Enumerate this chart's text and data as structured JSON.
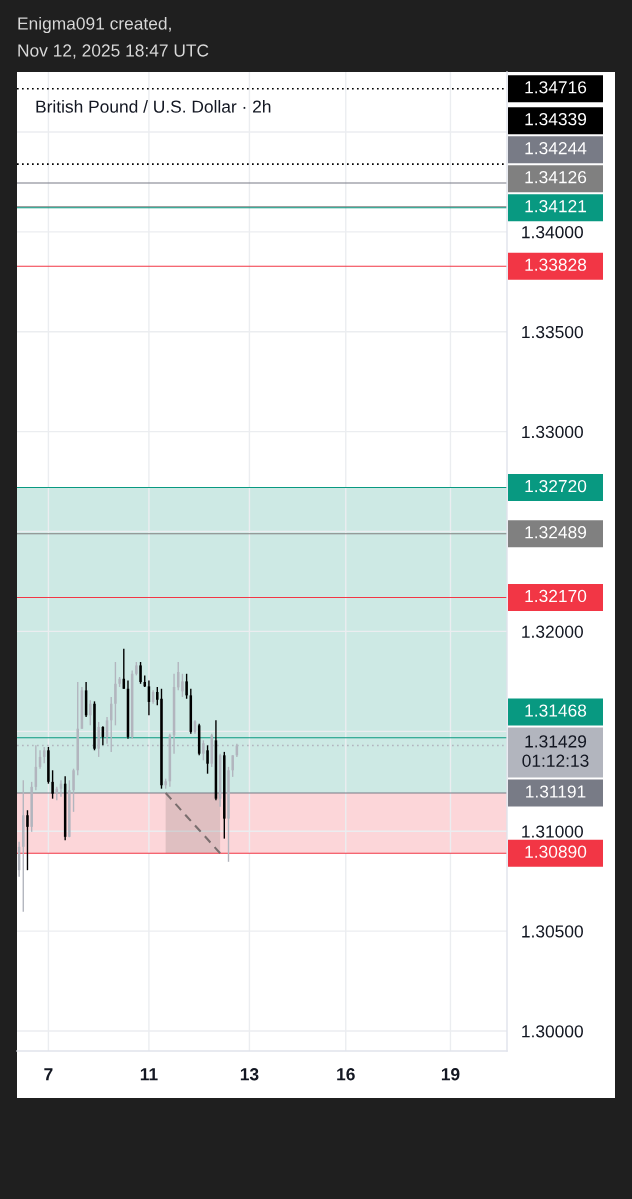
{
  "chart_data": {
    "type": "candlestick",
    "title": "British Pound / U.S. Dollar · 2h",
    "annotations": [
      "Enigma091 created,",
      "Nov 12, 2025 18:47 UTC"
    ],
    "categories": [
      null,
      null,
      null,
      null,
      null,
      null,
      null,
      "7",
      null,
      null,
      null,
      null,
      null,
      null,
      null,
      null,
      null,
      null,
      null,
      null,
      null,
      null,
      null,
      null,
      null,
      null,
      null,
      null,
      null,
      null,
      null,
      "11",
      null,
      null,
      null,
      null,
      null,
      null,
      null,
      null,
      null,
      null,
      null,
      null,
      null,
      null,
      null,
      null,
      null,
      null,
      null,
      null,
      null,
      null,
      null,
      "13",
      null,
      null,
      null,
      null,
      null,
      null,
      null,
      null,
      null,
      null,
      null,
      null,
      null,
      null,
      null,
      null,
      null,
      null,
      null,
      null,
      null,
      null,
      "16",
      null,
      null,
      null,
      null,
      null,
      null,
      null,
      null,
      null,
      null,
      null,
      null,
      null,
      null,
      null,
      null,
      null,
      null,
      null,
      null,
      null,
      null,
      null,
      null,
      "19",
      null,
      null,
      null,
      null,
      null,
      null,
      null,
      null,
      null,
      null,
      null,
      null,
      null
    ],
    "ohlc": [
      [
        1.30805,
        1.30947,
        1.30772,
        1.30922
      ],
      [
        1.30922,
        1.31255,
        1.30597,
        1.3108
      ],
      [
        1.3108,
        1.31105,
        1.30805,
        1.31022
      ],
      [
        1.31022,
        1.31247,
        1.30997,
        1.31222
      ],
      [
        1.31222,
        1.3143,
        1.31205,
        1.31322
      ],
      [
        1.31322,
        1.31405,
        1.31313,
        1.31372
      ],
      [
        1.31372,
        1.31422,
        1.3134,
        1.31405
      ],
      [
        1.31405,
        1.31422,
        1.31238,
        1.31247
      ],
      [
        1.31247,
        1.31305,
        1.31163,
        1.31188
      ],
      [
        1.31188,
        1.31222,
        1.31155,
        1.31213
      ],
      [
        1.31213,
        1.31255,
        1.31172,
        1.31238
      ],
      [
        1.31238,
        1.31275,
        1.30955,
        1.30972
      ],
      [
        1.30972,
        1.31255,
        1.3097,
        1.31205
      ],
      [
        1.31205,
        1.31313,
        1.31097,
        1.31305
      ],
      [
        1.31305,
        1.31747,
        1.3128,
        1.31513
      ],
      [
        1.31513,
        1.31722,
        1.31513,
        1.31705
      ],
      [
        1.31705,
        1.31747,
        1.31572,
        1.3158
      ],
      [
        1.3158,
        1.31655,
        1.3153,
        1.31638
      ],
      [
        1.31638,
        1.3165,
        1.31405,
        1.31413
      ],
      [
        1.31413,
        1.31547,
        1.31372,
        1.31522
      ],
      [
        1.31522,
        1.31525,
        1.3143,
        1.31472
      ],
      [
        1.31472,
        1.31572,
        1.31438,
        1.31555
      ],
      [
        1.31555,
        1.31672,
        1.31397,
        1.31638
      ],
      [
        1.31638,
        1.31847,
        1.3153,
        1.31738
      ],
      [
        1.31738,
        1.31772,
        1.31722,
        1.31763
      ],
      [
        1.31763,
        1.31913,
        1.31713,
        1.31713
      ],
      [
        1.31713,
        1.31755,
        1.31463,
        1.31472
      ],
      [
        1.31472,
        1.31805,
        1.31463,
        1.31788
      ],
      [
        1.31788,
        1.31847,
        1.3178,
        1.3183
      ],
      [
        1.3183,
        1.31847,
        1.31738,
        1.31747
      ],
      [
        1.31747,
        1.3178,
        1.31722,
        1.31725
      ],
      [
        1.31725,
        1.31755,
        1.3158,
        1.31647
      ],
      [
        1.31647,
        1.31705,
        1.31638,
        1.31697
      ],
      [
        1.31697,
        1.31722,
        1.3163,
        1.31658
      ],
      [
        1.31663,
        1.31713,
        1.31213,
        1.3123
      ],
      [
        1.3123,
        1.31263,
        1.31213,
        1.3125
      ],
      [
        1.3125,
        1.31488,
        1.31222,
        1.3148
      ],
      [
        1.3148,
        1.31788,
        1.31388,
        1.31722
      ],
      [
        1.3172,
        1.31847,
        1.31705,
        1.31797
      ],
      [
        1.317,
        1.31788,
        1.31672,
        1.3175
      ],
      [
        1.3175,
        1.31788,
        1.31663,
        1.3168
      ],
      [
        1.3168,
        1.31713,
        1.31488,
        1.31497
      ],
      [
        1.31497,
        1.31555,
        1.31488,
        1.3155
      ],
      [
        1.3153,
        1.31538,
        1.3138,
        1.31388
      ],
      [
        1.31388,
        1.31455,
        1.31355,
        1.3144
      ],
      [
        1.31405,
        1.3143,
        1.31288,
        1.31338
      ],
      [
        1.31338,
        1.31488,
        1.31322,
        1.3148
      ],
      [
        1.31455,
        1.31555,
        1.31155,
        1.31163
      ],
      [
        1.31163,
        1.31388,
        1.31122,
        1.3138
      ],
      [
        1.3138,
        1.31397,
        1.30963,
        1.31063
      ],
      [
        1.31063,
        1.31322,
        1.30847,
        1.31305
      ],
      [
        1.31305,
        1.3138,
        1.31272,
        1.3138
      ],
      [
        1.3138,
        1.31438,
        1.31372,
        1.31429
      ],
      null,
      null,
      null,
      null,
      null,
      null,
      null,
      null,
      null,
      null,
      null,
      null,
      null,
      null,
      null,
      null,
      null,
      null,
      null,
      null,
      null,
      null,
      null,
      null,
      null,
      null,
      null,
      null,
      null,
      null,
      null,
      null,
      null,
      null,
      null,
      null,
      null,
      null,
      null,
      null,
      null,
      null,
      null,
      null,
      null,
      null,
      null,
      null,
      null,
      null,
      null,
      null,
      null,
      null,
      null,
      null,
      null,
      null,
      null,
      null,
      null,
      null,
      null,
      null
    ],
    "colors": [
      "#b2b5be",
      "#b2b5be",
      "#000000",
      "#b2b5be",
      "#b2b5be",
      "#b2b5be",
      "#b2b5be",
      "#000000",
      "#000000",
      "#b2b5be",
      "#b2b5be",
      "#000000",
      "#b2b5be",
      "#b2b5be",
      "#b2b5be",
      "#b2b5be",
      "#000000",
      "#b2b5be",
      "#000000",
      "#b2b5be",
      "#000000",
      "#b2b5be",
      "#b2b5be",
      "#b2b5be",
      "#b2b5be",
      "#000000",
      "#000000",
      "#b2b5be",
      "#b2b5be",
      "#000000",
      "#000000",
      "#000000",
      "#b2b5be",
      "#000000",
      "#000000",
      "#b2b5be",
      "#b2b5be",
      "#b2b5be",
      "#b2b5be",
      "#b2b5be",
      "#000000",
      "#000000",
      "#b2b5be",
      "#000000",
      "#b2b5be",
      "#000000",
      "#b2b5be",
      "#000000",
      "#b2b5be",
      "#000000",
      "#b2b5be",
      "#b2b5be",
      "#b2b5be",
      null,
      null,
      null,
      null,
      null,
      null,
      null,
      null,
      null,
      null,
      null,
      null,
      null,
      null,
      null,
      null,
      null,
      null,
      null,
      null,
      null,
      null,
      null,
      null,
      null,
      null,
      null,
      null,
      null,
      null,
      null,
      null,
      null,
      null,
      null,
      null,
      null,
      null,
      null,
      null,
      null,
      null,
      null,
      null,
      null,
      null,
      null,
      null,
      null,
      null,
      null,
      null,
      null,
      null,
      null,
      null,
      null,
      null,
      null,
      null,
      null,
      null,
      null,
      null
    ],
    "series": [
      {
        "type": "line",
        "color": "#7a6e6e",
        "line_style": "dashed",
        "values": [
          null,
          null,
          null,
          null,
          null,
          null,
          null,
          null,
          null,
          null,
          null,
          null,
          null,
          null,
          null,
          null,
          null,
          null,
          null,
          null,
          null,
          null,
          null,
          null,
          null,
          null,
          null,
          null,
          null,
          null,
          null,
          null,
          null,
          null,
          null,
          1.31191,
          1.31168,
          1.31145,
          1.31122,
          1.31098,
          1.31075,
          1.31052,
          1.31029,
          1.31006,
          1.30983,
          1.3096,
          1.30936,
          1.30913,
          1.3089,
          null,
          null,
          null,
          null,
          null,
          null,
          null,
          null,
          null,
          null,
          null,
          null,
          null,
          null,
          null,
          null,
          null,
          null,
          null,
          null,
          null,
          null,
          null,
          null,
          null,
          null,
          null,
          null,
          null,
          null,
          null,
          null,
          null,
          null,
          null,
          null,
          null,
          null,
          null,
          null,
          null,
          null,
          null,
          null,
          null,
          null,
          null,
          null,
          null,
          null,
          null,
          null,
          null,
          null,
          null,
          null,
          null,
          null,
          null,
          null,
          null,
          null,
          null,
          null,
          null,
          null,
          null,
          null
        ],
        "lower": [
          null,
          null,
          null,
          null,
          null,
          null,
          null,
          null,
          null,
          null,
          null,
          null,
          null,
          null,
          null,
          null,
          null,
          null,
          null,
          null,
          null,
          null,
          null,
          null,
          null,
          null,
          null,
          null,
          null,
          null,
          null,
          null,
          null,
          null,
          null,
          1.3089,
          1.3089,
          1.3089,
          1.3089,
          1.3089,
          1.3089,
          1.3089,
          1.3089,
          1.3089,
          1.3089,
          1.3089,
          1.3089,
          1.3089,
          1.3089,
          null,
          null,
          null,
          null,
          null,
          null,
          null,
          null,
          null,
          null,
          null,
          null,
          null,
          null,
          null,
          null,
          null,
          null,
          null,
          null,
          null,
          null,
          null,
          null,
          null,
          null,
          null,
          null,
          null,
          null,
          null,
          null,
          null,
          null,
          null,
          null,
          null,
          null,
          null,
          null,
          null,
          null,
          null,
          null,
          null,
          null,
          null,
          null,
          null,
          null,
          null,
          null,
          null,
          null,
          null,
          null,
          null,
          null,
          null,
          null,
          null,
          null,
          null,
          null,
          null,
          null,
          null,
          null
        ],
        "upper": [
          null,
          null,
          null,
          null,
          null,
          null,
          null,
          null,
          null,
          null,
          null,
          null,
          null,
          null,
          null,
          null,
          null,
          null,
          null,
          null,
          null,
          null,
          null,
          null,
          null,
          null,
          null,
          null,
          null,
          null,
          null,
          null,
          null,
          null,
          null,
          1.31191,
          1.31191,
          1.31191,
          1.31191,
          1.31191,
          1.31191,
          1.31191,
          1.31191,
          1.31191,
          1.31191,
          1.31191,
          1.31191,
          1.31191,
          1.31191,
          null,
          null,
          null,
          null,
          null,
          null,
          null,
          null,
          null,
          null,
          null,
          null,
          null,
          null,
          null,
          null,
          null,
          null,
          null,
          null,
          null,
          null,
          null,
          null,
          null,
          null,
          null,
          null,
          null,
          null,
          null,
          null,
          null,
          null,
          null,
          null,
          null,
          null,
          null,
          null,
          null,
          null,
          null,
          null,
          null,
          null,
          null,
          null,
          null,
          null,
          null,
          null,
          null,
          null,
          null,
          null,
          null,
          null,
          null,
          null,
          null,
          null,
          null,
          null,
          null,
          null,
          null,
          null
        ]
      }
    ],
    "bands": [
      {
        "axis": "y",
        "from": 1.31191,
        "to": 1.3272,
        "color": "#cde9e4"
      },
      {
        "axis": "y",
        "from": 1.3089,
        "to": 1.31191,
        "color": "#fcd6d9"
      }
    ],
    "ref_lines": [
      {
        "axis": "y",
        "value": 1.34716,
        "label": "1.34716",
        "color": "#000000",
        "line_style": "dotted"
      },
      {
        "axis": "y",
        "value": 1.34339,
        "label": "1.34339",
        "color": "#000000",
        "line_style": "dotted"
      },
      {
        "axis": "y",
        "value": 1.34244,
        "label": "1.34244",
        "color": "#787b86"
      },
      {
        "axis": "y",
        "value": 1.34126,
        "label": "1.34126",
        "color": "#808080"
      },
      {
        "axis": "y",
        "value": 1.34121,
        "label": "1.34121",
        "color": "#089981"
      },
      {
        "axis": "y",
        "value": 1.33828,
        "label": "1.33828",
        "color": "#f23645"
      },
      {
        "axis": "y",
        "value": 1.3272,
        "label": "1.32720",
        "color": "#089981"
      },
      {
        "axis": "y",
        "value": 1.32489,
        "label": "1.32489",
        "color": "#808080"
      },
      {
        "axis": "y",
        "value": 1.3217,
        "label": "1.32170",
        "color": "#f23645"
      },
      {
        "axis": "y",
        "value": 1.31468,
        "label": "1.31468",
        "color": "#089981"
      },
      {
        "axis": "y",
        "value": 1.31429,
        "label": "1.31429\n01:12:13",
        "color": "#b2b5be",
        "line_style": "dotted"
      },
      {
        "axis": "y",
        "value": 1.31191,
        "label": "1.31191",
        "color": "#787b86"
      },
      {
        "axis": "y",
        "value": 1.3089,
        "label": "1.30890",
        "color": "#f23645"
      }
    ],
    "ylim": [
      1.299,
      1.348
    ],
    "yticks": [
      {
        "value": 1.3,
        "label": "1.30000"
      },
      {
        "value": 1.305,
        "label": "1.30500"
      },
      {
        "value": 1.31,
        "label": "1.31000"
      },
      {
        "value": 1.315,
        "label": null
      },
      {
        "value": 1.32,
        "label": "1.32000"
      },
      {
        "value": 1.325,
        "label": null
      },
      {
        "value": 1.33,
        "label": "1.33000"
      },
      {
        "value": 1.335,
        "label": "1.33500"
      },
      {
        "value": 1.34,
        "label": "1.34000"
      },
      {
        "value": 1.345,
        "label": null
      }
    ],
    "grid": true
  }
}
